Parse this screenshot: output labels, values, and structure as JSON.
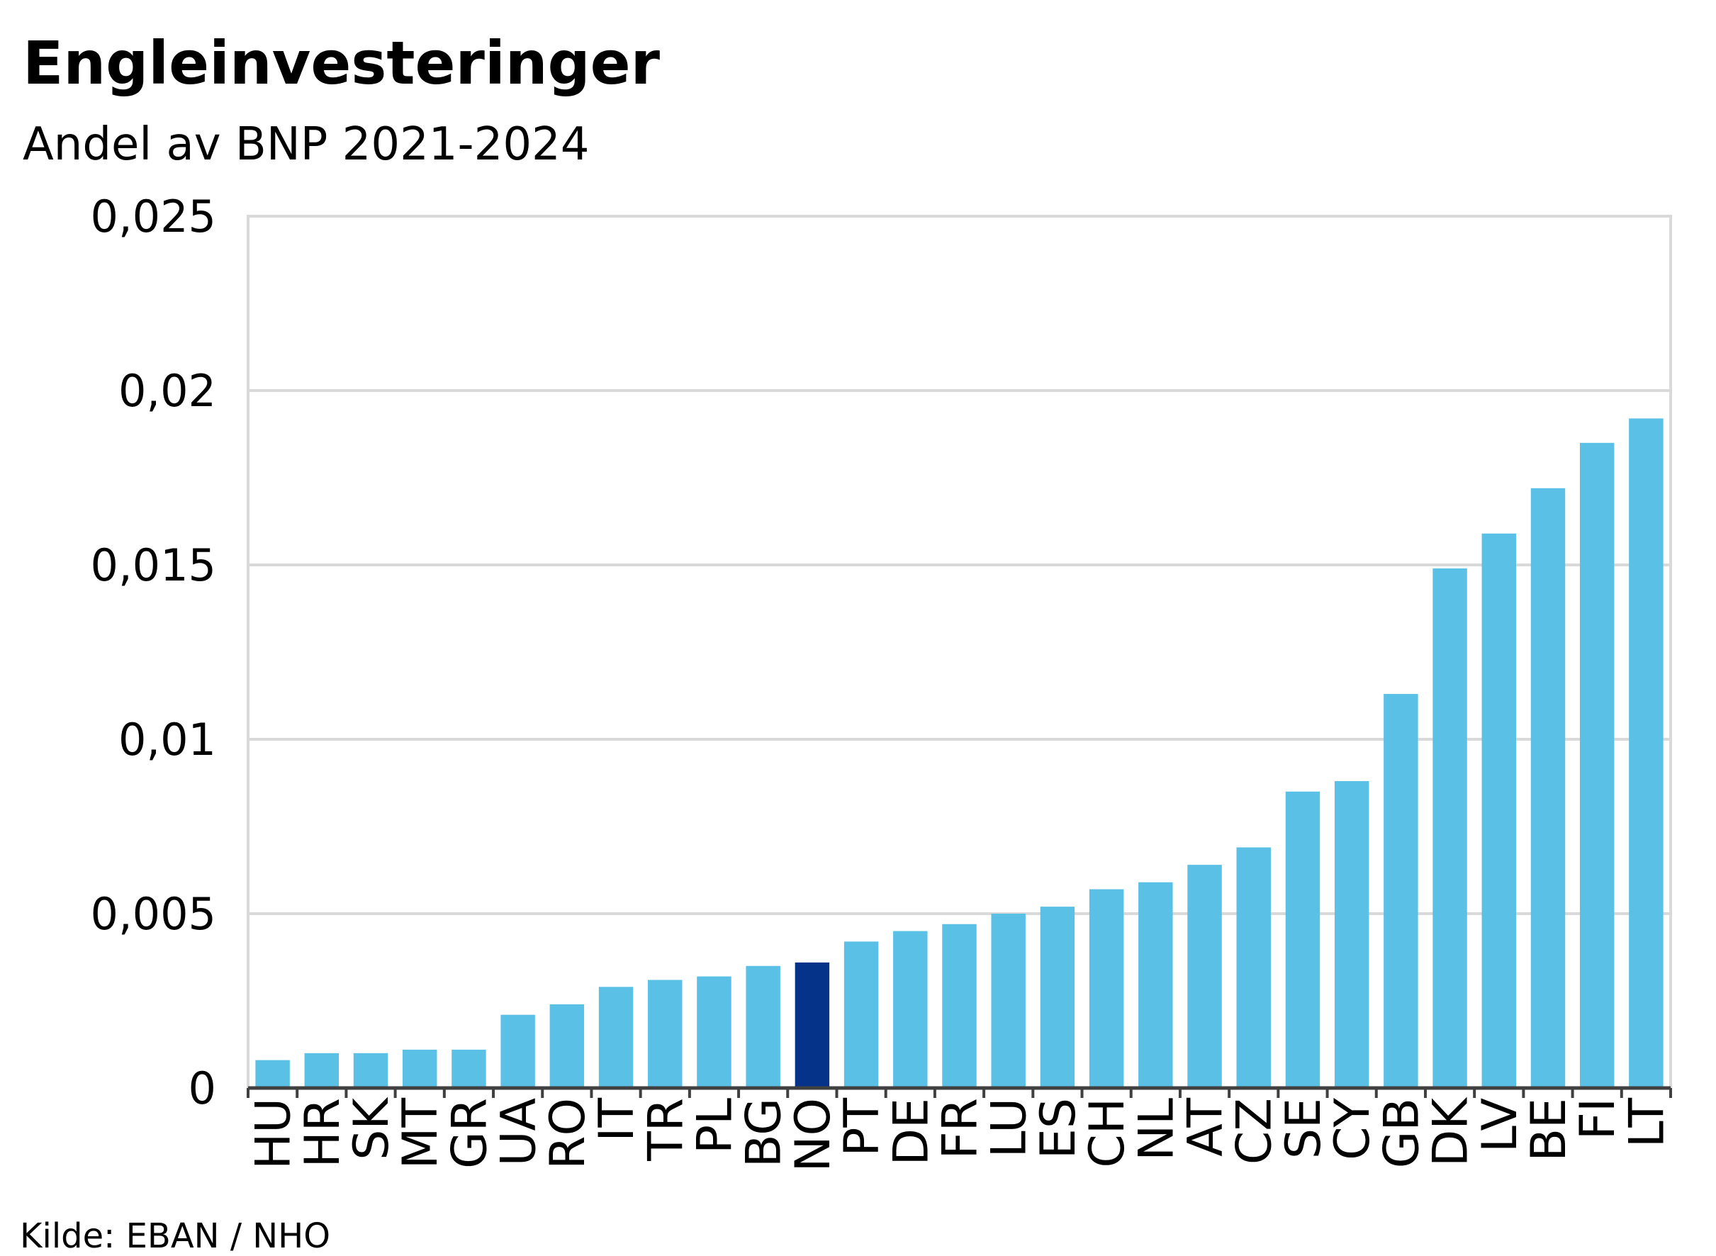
{
  "chart_data": {
    "type": "bar",
    "title": "Engleinvesteringer",
    "subtitle": "Andel av BNP 2021-2024",
    "source": "Kilde:  EBAN / NHO",
    "categories": [
      "HU",
      "HR",
      "SK",
      "MT",
      "GR",
      "UA",
      "RO",
      "IT",
      "TR",
      "PL",
      "BG",
      "NO",
      "PT",
      "DE",
      "FR",
      "LU",
      "ES",
      "CH",
      "NL",
      "AT",
      "CZ",
      "SE",
      "CY",
      "GB",
      "DK",
      "LV",
      "BE",
      "FI",
      "LT"
    ],
    "values": [
      0.0008,
      0.001,
      0.001,
      0.0011,
      0.0011,
      0.0021,
      0.0024,
      0.0029,
      0.0031,
      0.0032,
      0.0035,
      0.0036,
      0.0042,
      0.0045,
      0.0047,
      0.005,
      0.0052,
      0.0057,
      0.0059,
      0.0064,
      0.0069,
      0.0085,
      0.0088,
      0.0113,
      0.0149,
      0.0159,
      0.0172,
      0.0185,
      0.0192
    ],
    "colors": [
      "#5bc0e6",
      "#5bc0e6",
      "#5bc0e6",
      "#5bc0e6",
      "#5bc0e6",
      "#5bc0e6",
      "#5bc0e6",
      "#5bc0e6",
      "#5bc0e6",
      "#5bc0e6",
      "#5bc0e6",
      "#05338a",
      "#5bc0e6",
      "#5bc0e6",
      "#5bc0e6",
      "#5bc0e6",
      "#5bc0e6",
      "#5bc0e6",
      "#5bc0e6",
      "#5bc0e6",
      "#5bc0e6",
      "#5bc0e6",
      "#5bc0e6",
      "#5bc0e6",
      "#5bc0e6",
      "#5bc0e6",
      "#5bc0e6",
      "#5bc0e6",
      "#5bc0e6"
    ],
    "ylim": [
      0,
      0.025
    ],
    "yticks": [
      0,
      {
        "value": 0.005,
        "label": "0,005"
      },
      {
        "value": 0.01,
        "label": "0,01"
      },
      {
        "value": 0.015,
        "label": "0,015"
      },
      {
        "value": 0.02,
        "label": "0,02"
      },
      {
        "value": 0.025,
        "label": "0,025"
      }
    ],
    "grid": true
  }
}
